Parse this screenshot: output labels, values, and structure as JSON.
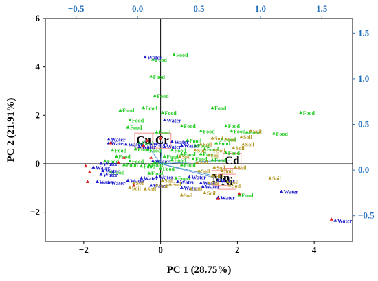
{
  "chart_data": {
    "type": "scatter",
    "subtype": "pca-biplot",
    "xlabel": "PC 1 (28.75%)",
    "ylabel": "PC 2 (21.91%)",
    "xlim": [
      -3,
      5
    ],
    "ylim": [
      -3.2,
      6
    ],
    "xticks": [
      -2,
      0,
      2,
      4
    ],
    "yticks": [
      -2,
      0,
      2,
      4,
      6
    ],
    "x2lim": [
      -0.75,
      1.75
    ],
    "y2lim": [
      -0.78,
      1.66
    ],
    "x2ticks": [
      -0.5,
      0.0,
      0.5,
      1.0,
      1.5
    ],
    "x2ticklabels": [
      "-0.5",
      "0.0",
      "0.5",
      "1.0",
      "1.5"
    ],
    "y2ticks": [
      -0.5,
      0.0,
      0.5,
      1.0,
      1.5
    ],
    "y2ticklabels": [
      "-0.5",
      "0.0",
      "0.5",
      "1.0",
      "1.5"
    ],
    "zero_lines": true,
    "grid": false,
    "colors": {
      "Food": "#22cc22",
      "Water": "#1a1acc",
      "Soil": "#b59a2a",
      "loading_line": "#5b9bd5",
      "loading_box": "#f07070",
      "red_marker": "#dd2222",
      "right_axis": "#1f6fbf"
    },
    "loadings": [
      {
        "label": "Cu",
        "x": 0.05,
        "y": 0.33
      },
      {
        "label": "Cr",
        "x": 0.2,
        "y": 0.33
      },
      {
        "label": "Cd",
        "x": 0.77,
        "y": 0.11
      },
      {
        "label": "Mn",
        "x": 0.68,
        "y": -0.08
      },
      {
        "label": "Ni",
        "x": 0.73,
        "y": -0.12
      }
    ],
    "series": [
      {
        "name": "Food",
        "points": [
          [
            -0.2,
            4.3
          ],
          [
            0.35,
            4.5
          ],
          [
            -0.25,
            3.6
          ],
          [
            -0.15,
            2.8
          ],
          [
            -0.45,
            2.3
          ],
          [
            -1.05,
            2.2
          ],
          [
            0.05,
            2.1
          ],
          [
            -0.8,
            1.8
          ],
          [
            -0.85,
            1.5
          ],
          [
            1.35,
            2.3
          ],
          [
            3.65,
            2.1
          ],
          [
            0.55,
            1.55
          ],
          [
            1.05,
            1.35
          ],
          [
            1.7,
            1.55
          ],
          [
            1.85,
            1.35
          ],
          [
            2.25,
            1.3
          ],
          [
            2.95,
            1.25
          ],
          [
            1.6,
            1.0
          ],
          [
            -0.1,
            1.3
          ],
          [
            0.7,
            0.95
          ],
          [
            1.45,
            0.85
          ],
          [
            1.15,
            0.6
          ],
          [
            -1.25,
            0.55
          ],
          [
            -1.15,
            0.3
          ],
          [
            -1.45,
            0.1
          ],
          [
            -0.8,
            0.1
          ],
          [
            -0.35,
            0.55
          ],
          [
            0.1,
            0.3
          ],
          [
            0.3,
            0.55
          ],
          [
            0.55,
            0.4
          ],
          [
            0.85,
            0.2
          ],
          [
            1.35,
            0.15
          ],
          [
            -0.55,
            0.85
          ],
          [
            0.9,
            0.75
          ],
          [
            -0.95,
            -0.05
          ],
          [
            -0.3,
            -0.05
          ],
          [
            0.55,
            -0.05
          ],
          [
            1.7,
            0.45
          ],
          [
            -0.15,
            0.05
          ],
          [
            0.0,
            -0.2
          ],
          [
            0.3,
            0.15
          ],
          [
            -1.3,
            -0.35
          ],
          [
            -0.3,
            -0.4
          ],
          [
            2.05,
            -1.3
          ],
          [
            0.4,
            -0.6
          ],
          [
            -0.5,
            -0.1
          ],
          [
            1.05,
            0.4
          ],
          [
            -0.65,
            0.6
          ]
        ]
      },
      {
        "name": "Water",
        "points": [
          [
            -0.4,
            4.4
          ],
          [
            0.1,
            1.8
          ],
          [
            -1.35,
            1.0
          ],
          [
            -1.35,
            0.85
          ],
          [
            -0.9,
            0.8
          ],
          [
            -0.25,
            0.8
          ],
          [
            -0.55,
            0.7
          ],
          [
            0.1,
            0.7
          ],
          [
            0.55,
            0.75
          ],
          [
            -1.55,
            0.0
          ],
          [
            -1.75,
            -0.15
          ],
          [
            -1.55,
            -0.45
          ],
          [
            -1.65,
            -0.75
          ],
          [
            -1.35,
            -0.8
          ],
          [
            -0.85,
            -0.7
          ],
          [
            -0.5,
            -0.6
          ],
          [
            -0.1,
            -0.55
          ],
          [
            -0.25,
            -0.9
          ],
          [
            0.45,
            -0.75
          ],
          [
            0.55,
            -1.0
          ],
          [
            1.05,
            -0.8
          ],
          [
            1.5,
            -1.4
          ],
          [
            1.1,
            -0.95
          ],
          [
            0.75,
            -0.55
          ],
          [
            3.15,
            -1.15
          ],
          [
            4.55,
            -2.35
          ],
          [
            -1.5,
            -0.3
          ],
          [
            -0.2,
            0.1
          ],
          [
            1.5,
            -0.7
          ],
          [
            0.3,
            0.9
          ]
        ]
      },
      {
        "name": "Soil",
        "points": [
          [
            1.7,
            1.0
          ],
          [
            2.35,
            1.35
          ],
          [
            1.35,
            1.05
          ],
          [
            2.1,
            1.1
          ],
          [
            2.15,
            0.8
          ],
          [
            1.05,
            0.8
          ],
          [
            1.9,
            0.65
          ],
          [
            1.4,
            0.55
          ],
          [
            0.9,
            0.55
          ],
          [
            0.5,
            0.3
          ],
          [
            1.25,
            0.35
          ],
          [
            1.95,
            -0.15
          ],
          [
            2.85,
            -0.6
          ],
          [
            1.6,
            -0.3
          ],
          [
            1.75,
            -0.75
          ],
          [
            1.35,
            -0.5
          ],
          [
            1.8,
            -0.9
          ],
          [
            1.15,
            -1.2
          ],
          [
            0.55,
            -1.3
          ],
          [
            0.8,
            -1.05
          ],
          [
            0.25,
            -0.85
          ],
          [
            -0.7,
            -0.8
          ],
          [
            -0.4,
            -1.05
          ],
          [
            -0.1,
            -0.9
          ],
          [
            -0.8,
            -1.0
          ],
          [
            1.0,
            -0.3
          ],
          [
            1.4,
            -0.15
          ],
          [
            0.95,
            0.05
          ],
          [
            0.05,
            -0.7
          ],
          [
            1.25,
            -0.8
          ]
        ]
      },
      {
        "name": "",
        "points": [
          [
            -1.95,
            -0.1
          ],
          [
            -1.85,
            -0.35
          ],
          [
            -1.9,
            -0.75
          ],
          [
            -0.7,
            -0.9
          ],
          [
            -0.45,
            0.75
          ],
          [
            -0.35,
            0.95
          ],
          [
            -1.3,
            0.85
          ],
          [
            -0.25,
            0.25
          ],
          [
            0.0,
            1.05
          ],
          [
            4.45,
            -2.3
          ],
          [
            2.05,
            -1.25
          ],
          [
            1.5,
            -1.45
          ],
          [
            -0.95,
            0.25
          ],
          [
            -1.1,
            0.05
          ]
        ]
      }
    ]
  }
}
